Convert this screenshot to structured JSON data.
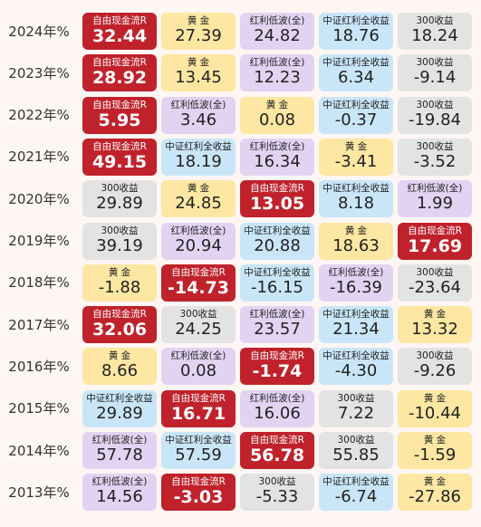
{
  "chart_data": {
    "type": "table",
    "years": [
      "2024年%",
      "2023年%",
      "2022年%",
      "2021年%",
      "2020年%",
      "2019年%",
      "2018年%",
      "2017年%",
      "2016年%",
      "2015年%",
      "2014年%",
      "2013年%"
    ],
    "assets": {
      "fcf": {
        "label": "自由现金流R",
        "color": "#c0222c",
        "text_color": "#ffffff"
      },
      "gold": {
        "label": "黄 金",
        "color": "#fde7a2",
        "text_color": "#222222"
      },
      "lowvol": {
        "label": "红利低波(全)",
        "color": "#e3d3f2",
        "text_color": "#222222"
      },
      "csidiv": {
        "label": "中证红利全收益",
        "color": "#c9e6f8",
        "text_color": "#222222"
      },
      "hs300": {
        "label": "300收益",
        "color": "#e3e3e3",
        "text_color": "#222222"
      }
    },
    "rows": [
      [
        {
          "asset": "fcf",
          "value": "32.44"
        },
        {
          "asset": "gold",
          "value": "27.39"
        },
        {
          "asset": "lowvol",
          "value": "24.82"
        },
        {
          "asset": "csidiv",
          "value": "18.76"
        },
        {
          "asset": "hs300",
          "value": "18.24"
        }
      ],
      [
        {
          "asset": "fcf",
          "value": "28.92"
        },
        {
          "asset": "gold",
          "value": "13.45"
        },
        {
          "asset": "lowvol",
          "value": "12.23"
        },
        {
          "asset": "csidiv",
          "value": "6.34"
        },
        {
          "asset": "hs300",
          "value": "-9.14"
        }
      ],
      [
        {
          "asset": "fcf",
          "value": "5.95"
        },
        {
          "asset": "lowvol",
          "value": "3.46"
        },
        {
          "asset": "gold",
          "value": "0.08"
        },
        {
          "asset": "csidiv",
          "value": "-0.37"
        },
        {
          "asset": "hs300",
          "value": "-19.84"
        }
      ],
      [
        {
          "asset": "fcf",
          "value": "49.15"
        },
        {
          "asset": "csidiv",
          "value": "18.19"
        },
        {
          "asset": "lowvol",
          "value": "16.34"
        },
        {
          "asset": "gold",
          "value": "-3.41"
        },
        {
          "asset": "hs300",
          "value": "-3.52"
        }
      ],
      [
        {
          "asset": "hs300",
          "value": "29.89"
        },
        {
          "asset": "gold",
          "value": "24.85"
        },
        {
          "asset": "fcf",
          "value": "13.05"
        },
        {
          "asset": "csidiv",
          "value": "8.18"
        },
        {
          "asset": "lowvol",
          "value": "1.99"
        }
      ],
      [
        {
          "asset": "hs300",
          "value": "39.19"
        },
        {
          "asset": "lowvol",
          "value": "20.94"
        },
        {
          "asset": "csidiv",
          "value": "20.88"
        },
        {
          "asset": "gold",
          "value": "18.63"
        },
        {
          "asset": "fcf",
          "value": "17.69"
        }
      ],
      [
        {
          "asset": "gold",
          "value": "-1.88"
        },
        {
          "asset": "fcf",
          "value": "-14.73"
        },
        {
          "asset": "csidiv",
          "value": "-16.15"
        },
        {
          "asset": "lowvol",
          "value": "-16.39"
        },
        {
          "asset": "hs300",
          "value": "-23.64"
        }
      ],
      [
        {
          "asset": "fcf",
          "value": "32.06"
        },
        {
          "asset": "hs300",
          "value": "24.25"
        },
        {
          "asset": "lowvol",
          "value": "23.57"
        },
        {
          "asset": "csidiv",
          "value": "21.34"
        },
        {
          "asset": "gold",
          "value": "13.32"
        }
      ],
      [
        {
          "asset": "gold",
          "value": "8.66"
        },
        {
          "asset": "lowvol",
          "value": "0.08"
        },
        {
          "asset": "fcf",
          "value": "-1.74"
        },
        {
          "asset": "csidiv",
          "value": "-4.30"
        },
        {
          "asset": "hs300",
          "value": "-9.26"
        }
      ],
      [
        {
          "asset": "csidiv",
          "value": "29.89"
        },
        {
          "asset": "fcf",
          "value": "16.71"
        },
        {
          "asset": "lowvol",
          "value": "16.06"
        },
        {
          "asset": "hs300",
          "value": "7.22"
        },
        {
          "asset": "gold",
          "value": "-10.44"
        }
      ],
      [
        {
          "asset": "lowvol",
          "value": "57.78"
        },
        {
          "asset": "csidiv",
          "value": "57.59"
        },
        {
          "asset": "fcf",
          "value": "56.78"
        },
        {
          "asset": "hs300",
          "value": "55.85"
        },
        {
          "asset": "gold",
          "value": "-1.59"
        }
      ],
      [
        {
          "asset": "lowvol",
          "value": "14.56"
        },
        {
          "asset": "fcf",
          "value": "-3.03"
        },
        {
          "asset": "hs300",
          "value": "-5.33"
        },
        {
          "asset": "csidiv",
          "value": "-6.74"
        },
        {
          "asset": "gold",
          "value": "-27.86"
        }
      ]
    ]
  }
}
